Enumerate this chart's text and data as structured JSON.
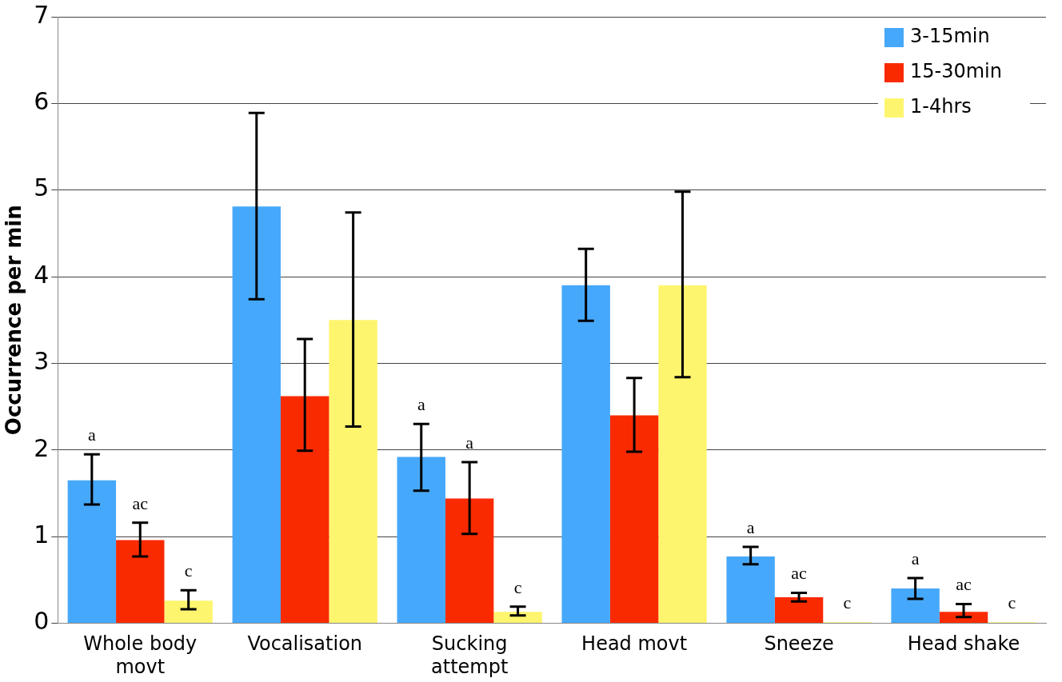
{
  "chart_data": {
    "type": "bar",
    "ylabel": "Occurrence per min",
    "categories": [
      "Whole body movt",
      "Vocalisation",
      "Sucking attempt",
      "Head movt",
      "Sneeze",
      "Head shake"
    ],
    "series": [
      {
        "name": "3-15min",
        "color": "#46a8fa",
        "values": [
          1.65,
          4.81,
          1.92,
          3.9,
          0.77,
          0.4
        ],
        "errors": [
          [
            1.37,
            1.95
          ],
          [
            3.74,
            5.89
          ],
          [
            1.53,
            2.3
          ],
          [
            3.49,
            4.32
          ],
          [
            0.68,
            0.88
          ],
          [
            0.28,
            0.52
          ]
        ],
        "value_labels": [
          "a",
          null,
          "a",
          null,
          "a",
          "a"
        ]
      },
      {
        "name": "15-30min",
        "color": "#fa2a00",
        "values": [
          0.96,
          2.62,
          1.44,
          2.4,
          0.3,
          0.13
        ],
        "errors": [
          [
            0.77,
            1.16
          ],
          [
            1.99,
            3.28
          ],
          [
            1.03,
            1.86
          ],
          [
            1.98,
            2.83
          ],
          [
            0.25,
            0.35
          ],
          [
            0.07,
            0.22
          ]
        ],
        "value_labels": [
          "ac",
          null,
          "a",
          null,
          "ac",
          "ac"
        ]
      },
      {
        "name": "1-4hrs",
        "color": "#fef56f",
        "values": [
          0.26,
          3.5,
          0.13,
          3.9,
          0.01,
          0.01
        ],
        "errors": [
          [
            0.16,
            0.38
          ],
          [
            2.27,
            4.74
          ],
          [
            0.09,
            0.19
          ],
          [
            2.84,
            4.98
          ],
          null,
          null
        ],
        "value_labels": [
          "c",
          null,
          "c",
          null,
          "c",
          "c"
        ]
      }
    ],
    "ylim": [
      0,
      7
    ],
    "yticks": [
      0,
      1,
      2,
      3,
      4,
      5,
      6,
      7
    ],
    "grid": "y",
    "legend": "top right"
  }
}
